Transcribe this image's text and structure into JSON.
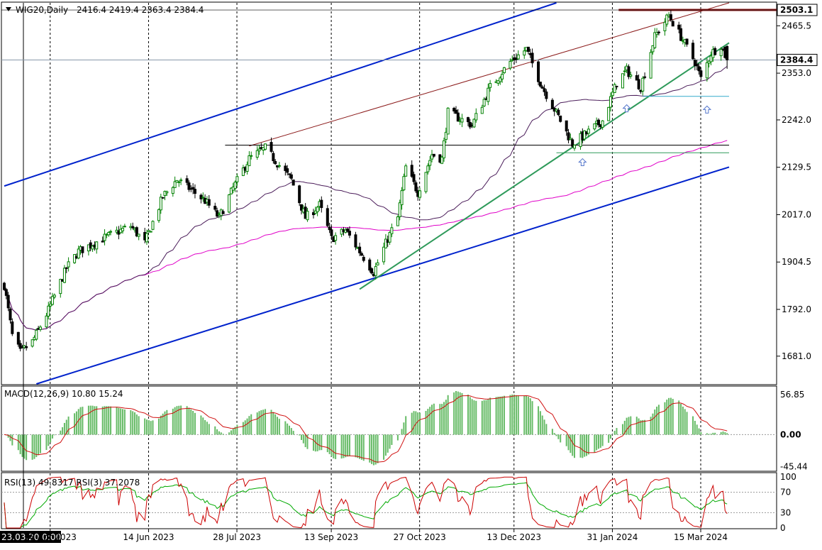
{
  "header": {
    "symbol": "WIG20,Daily",
    "ohlc": "2416.4 2419.4 2363.4 2384.4"
  },
  "chart_data": [
    {
      "type": "candlestick",
      "title": "WIG20,Daily",
      "ohlc_last": {
        "open": 2416.4,
        "high": 2419.4,
        "low": 2363.4,
        "close": 2384.4
      },
      "ylim": [
        1615,
        2520
      ],
      "y_ticks": [
        "2465.5",
        "2353.0",
        "2242.0",
        "2129.5",
        "2017.0",
        "1904.5",
        "1792.0",
        "1681.0"
      ],
      "price_tags": [
        {
          "label": "2503.1",
          "kind": "resistance-level"
        },
        {
          "label": "2384.4",
          "kind": "last-price"
        }
      ],
      "x_ticks": [
        "23.03.20 0:00",
        "26 Apr 2023",
        "14 Jun 2023",
        "28 Jul 2023",
        "13 Sep 2023",
        "27 Oct 2023",
        "13 Dec 2023",
        "31 Jan 2024",
        "15 Mar 2024"
      ],
      "x_range": [
        "2023-03-20",
        "2024-03-15"
      ],
      "close_path": [
        {
          "date": "2023-03-20",
          "close": 1850
        },
        {
          "date": "2023-03-24",
          "close": 1730
        },
        {
          "date": "2023-03-28",
          "close": 1690
        },
        {
          "date": "2023-04-03",
          "close": 1715
        },
        {
          "date": "2023-04-10",
          "close": 1780
        },
        {
          "date": "2023-04-20",
          "close": 1890
        },
        {
          "date": "2023-04-26",
          "close": 1930
        },
        {
          "date": "2023-05-08",
          "close": 1960
        },
        {
          "date": "2023-05-22",
          "close": 1990
        },
        {
          "date": "2023-05-29",
          "close": 1950
        },
        {
          "date": "2023-06-07",
          "close": 2060
        },
        {
          "date": "2023-06-14",
          "close": 2100
        },
        {
          "date": "2023-06-20",
          "close": 2080
        },
        {
          "date": "2023-06-28",
          "close": 2050
        },
        {
          "date": "2023-07-05",
          "close": 2010
        },
        {
          "date": "2023-07-12",
          "close": 2080
        },
        {
          "date": "2023-07-20",
          "close": 2150
        },
        {
          "date": "2023-07-28",
          "close": 2175
        },
        {
          "date": "2023-08-03",
          "close": 2140
        },
        {
          "date": "2023-08-10",
          "close": 2100
        },
        {
          "date": "2023-08-17",
          "close": 2010
        },
        {
          "date": "2023-08-24",
          "close": 2040
        },
        {
          "date": "2023-08-30",
          "close": 1960
        },
        {
          "date": "2023-09-06",
          "close": 1980
        },
        {
          "date": "2023-09-13",
          "close": 1930
        },
        {
          "date": "2023-09-20",
          "close": 1880
        },
        {
          "date": "2023-09-27",
          "close": 1960
        },
        {
          "date": "2023-10-02",
          "close": 2010
        },
        {
          "date": "2023-10-06",
          "close": 2130
        },
        {
          "date": "2023-10-12",
          "close": 2070
        },
        {
          "date": "2023-10-19",
          "close": 2160
        },
        {
          "date": "2023-10-24",
          "close": 2150
        },
        {
          "date": "2023-10-27",
          "close": 2260
        },
        {
          "date": "2023-11-08",
          "close": 2230
        },
        {
          "date": "2023-11-17",
          "close": 2320
        },
        {
          "date": "2023-11-27",
          "close": 2380
        },
        {
          "date": "2023-12-05",
          "close": 2410
        },
        {
          "date": "2023-12-13",
          "close": 2320
        },
        {
          "date": "2023-12-21",
          "close": 2250
        },
        {
          "date": "2023-12-28",
          "close": 2185
        },
        {
          "date": "2024-01-04",
          "close": 2210
        },
        {
          "date": "2024-01-12",
          "close": 2240
        },
        {
          "date": "2024-01-19",
          "close": 2330
        },
        {
          "date": "2024-01-24",
          "close": 2360
        },
        {
          "date": "2024-01-31",
          "close": 2320
        },
        {
          "date": "2024-02-07",
          "close": 2440
        },
        {
          "date": "2024-02-14",
          "close": 2490
        },
        {
          "date": "2024-02-20",
          "close": 2440
        },
        {
          "date": "2024-02-27",
          "close": 2380
        },
        {
          "date": "2024-03-01",
          "close": 2340
        },
        {
          "date": "2024-03-06",
          "close": 2400
        },
        {
          "date": "2024-03-11",
          "close": 2420
        },
        {
          "date": "2024-03-14",
          "close": 2384.4
        }
      ],
      "indicators": [
        "moving-average-short (purple)",
        "moving-average-long (magenta)"
      ],
      "trend_lines": [
        "upper-channel (blue)",
        "lower-channel (blue)",
        "rising-support (green)",
        "resistance-channel (brown)",
        "horizontal-level (black)",
        "horizontal-level (green)"
      ],
      "grid": "vertical-dotted"
    },
    {
      "type": "macd",
      "label": "MACD(12,26,9) 10.80 15.24",
      "y_ticks": [
        "56.85",
        "0.00",
        "-45.44"
      ],
      "ylim": [
        -50,
        65
      ]
    },
    {
      "type": "rsi",
      "label": "RSI(13) 49.8317  RSI(3) 37.2078",
      "y_ticks": [
        "100",
        "70",
        "30",
        "0"
      ],
      "ylim": [
        0,
        100
      ]
    }
  ],
  "colors": {
    "candle": "#008000",
    "bear": "#000000",
    "ma_short": "#4b1d5a",
    "ma_long": "#e000c8",
    "channel": "#0022cc",
    "support": "#2e9a5a",
    "resistance": "#8b1a1a",
    "macd_hist": "#66bb66",
    "macd_signal": "#d01010",
    "rsi_fast": "#cc0000",
    "rsi_slow": "#00aa00"
  }
}
